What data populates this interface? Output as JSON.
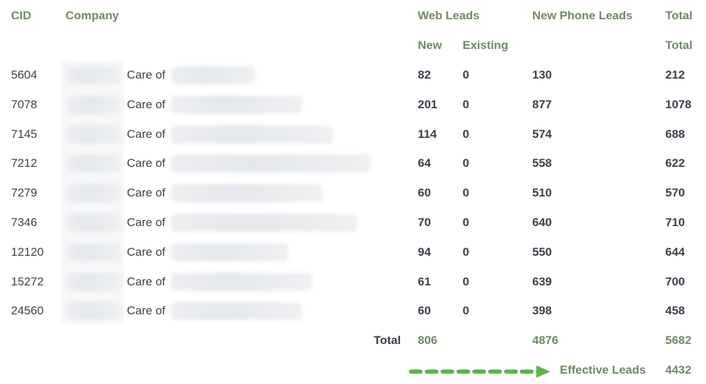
{
  "headers": {
    "cid": "CID",
    "company": "Company",
    "web_leads": "Web Leads",
    "new_phone_leads": "New Phone Leads",
    "total": "Total",
    "new": "New",
    "existing": "Existing",
    "total_sub": "Total"
  },
  "rows": [
    {
      "cid": "5604",
      "care_of": "Care of",
      "new": "82",
      "existing": "0",
      "phone": "130",
      "total": "212"
    },
    {
      "cid": "7078",
      "care_of": "Care of",
      "new": "201",
      "existing": "0",
      "phone": "877",
      "total": "1078"
    },
    {
      "cid": "7145",
      "care_of": "Care of",
      "new": "114",
      "existing": "0",
      "phone": "574",
      "total": "688"
    },
    {
      "cid": "7212",
      "care_of": "Care of",
      "new": "64",
      "existing": "0",
      "phone": "558",
      "total": "622"
    },
    {
      "cid": "7279",
      "care_of": "Care of",
      "new": "60",
      "existing": "0",
      "phone": "510",
      "total": "570"
    },
    {
      "cid": "7346",
      "care_of": "Care of",
      "new": "70",
      "existing": "0",
      "phone": "640",
      "total": "710"
    },
    {
      "cid": "12120",
      "care_of": "Care of",
      "new": "94",
      "existing": "0",
      "phone": "550",
      "total": "644"
    },
    {
      "cid": "15272",
      "care_of": "Care of",
      "new": "61",
      "existing": "0",
      "phone": "639",
      "total": "700"
    },
    {
      "cid": "24560",
      "care_of": "Care of",
      "new": "60",
      "existing": "0",
      "phone": "398",
      "total": "458"
    }
  ],
  "totals": {
    "label": "Total",
    "web_new": "806",
    "phone": "4876",
    "total": "5682"
  },
  "effective": {
    "label": "Effective Leads",
    "value": "4432",
    "arrow_color": "#5cb546"
  },
  "colors": {
    "header": "#6e8a65",
    "text": "#3a414c"
  }
}
